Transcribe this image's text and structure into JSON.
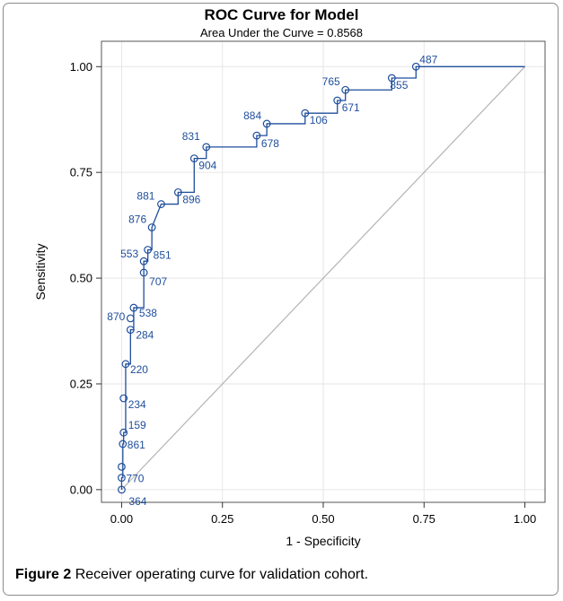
{
  "caption": {
    "label": "Figure 2",
    "text": "Receiver operating curve for validation cohort."
  },
  "chart_data": {
    "type": "line",
    "title": "ROC Curve for Model",
    "subtitle": "Area Under the Curve = 0.8568",
    "xlabel": "1 - Specificity",
    "ylabel": "Sensitivity",
    "xlim": [
      -0.05,
      1.05
    ],
    "ylim": [
      -0.03,
      1.06
    ],
    "x_ticks": [
      "0.00",
      "0.25",
      "0.50",
      "0.75",
      "1.00"
    ],
    "y_ticks": [
      "0.00",
      "0.25",
      "0.50",
      "0.75",
      "1.00"
    ],
    "grid": true,
    "colors": {
      "curve": "#1f4e9c",
      "diagonal": "#b4b4b4",
      "grid": "#e6e6e6"
    },
    "series": [
      {
        "x": [
          0,
          0,
          0.003,
          0.003,
          0.005,
          0.005,
          0.01,
          0.01,
          0.022,
          0.022,
          0.03,
          0.03,
          0.055,
          0.055,
          0.065,
          0.065,
          0.075,
          0.075,
          0.098,
          0.14,
          0.14,
          0.18,
          0.18,
          0.21,
          0.21,
          0.335,
          0.335,
          0.36,
          0.36,
          0.455,
          0.455,
          0.535,
          0.535,
          0.555,
          0.555,
          0.67,
          0.67,
          0.73,
          0.73,
          1.0
        ],
        "y": [
          0,
          0.028,
          0.028,
          0.108,
          0.108,
          0.135,
          0.135,
          0.297,
          0.297,
          0.378,
          0.378,
          0.43,
          0.43,
          0.54,
          0.54,
          0.567,
          0.567,
          0.62,
          0.675,
          0.675,
          0.703,
          0.703,
          0.783,
          0.783,
          0.81,
          0.81,
          0.837,
          0.837,
          0.865,
          0.865,
          0.89,
          0.89,
          0.92,
          0.92,
          0.945,
          0.945,
          0.973,
          0.973,
          1.0,
          1.0
        ]
      }
    ],
    "diagonal": [
      [
        0,
        0
      ],
      [
        1,
        1
      ]
    ],
    "points": [
      {
        "x": 0.0,
        "y": 0.0,
        "label": "364"
      },
      {
        "x": 0.0,
        "y": 0.028,
        "label": "770"
      },
      {
        "x": 0.0,
        "y": 0.054,
        "label": ""
      },
      {
        "x": 0.003,
        "y": 0.108,
        "label": "861"
      },
      {
        "x": 0.005,
        "y": 0.135,
        "label": "159"
      },
      {
        "x": 0.005,
        "y": 0.216,
        "label": "234"
      },
      {
        "x": 0.01,
        "y": 0.297,
        "label": "220"
      },
      {
        "x": 0.022,
        "y": 0.378,
        "label": "284"
      },
      {
        "x": 0.022,
        "y": 0.405,
        "label": "870"
      },
      {
        "x": 0.03,
        "y": 0.43,
        "label": "538"
      },
      {
        "x": 0.055,
        "y": 0.513,
        "label": "707"
      },
      {
        "x": 0.055,
        "y": 0.54,
        "label": "553"
      },
      {
        "x": 0.065,
        "y": 0.567,
        "label": "851"
      },
      {
        "x": 0.075,
        "y": 0.62,
        "label": "876"
      },
      {
        "x": 0.098,
        "y": 0.675,
        "label": "881"
      },
      {
        "x": 0.14,
        "y": 0.703,
        "label": "896"
      },
      {
        "x": 0.18,
        "y": 0.783,
        "label": "904"
      },
      {
        "x": 0.21,
        "y": 0.81,
        "label": "831"
      },
      {
        "x": 0.335,
        "y": 0.837,
        "label": "678"
      },
      {
        "x": 0.36,
        "y": 0.865,
        "label": "884"
      },
      {
        "x": 0.455,
        "y": 0.89,
        "label": "106"
      },
      {
        "x": 0.535,
        "y": 0.92,
        "label": "671"
      },
      {
        "x": 0.555,
        "y": 0.945,
        "label": "765"
      },
      {
        "x": 0.67,
        "y": 0.973,
        "label": "855"
      },
      {
        "x": 0.73,
        "y": 1.0,
        "label": "487"
      }
    ]
  }
}
